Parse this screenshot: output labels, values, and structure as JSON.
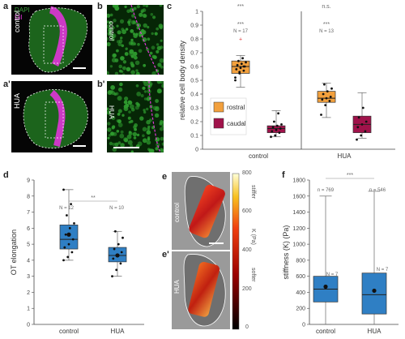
{
  "figure": {
    "panel_labels": {
      "a": "a",
      "a_prime": "a'",
      "b": "b",
      "b_prime": "b'",
      "c": "c",
      "d": "d",
      "e": "e",
      "e_prime": "e'",
      "f": "f"
    },
    "panel_a": {
      "legend_dapi": "DAPI",
      "legend_dii": "DiI",
      "condition": "control"
    },
    "panel_a_prime": {
      "condition": "HUA"
    },
    "panel_b": {
      "condition": "control"
    },
    "panel_b_prime": {
      "condition": "HUA"
    },
    "panel_e": {
      "condition": "control",
      "softer": "softer",
      "stiffer": "stiffer"
    },
    "panel_e_prime": {
      "condition": "HUA"
    },
    "colorbar": {
      "label": "K (Pa)",
      "ticks": [
        "800",
        "600",
        "400",
        "200",
        "0"
      ]
    },
    "colors": {
      "rostral": "#f2a03d",
      "caudal": "#a0124a",
      "control_blue": "#2f7fc4",
      "hua_blue": "#2f7fc4",
      "dapi_green": "#3ca03c",
      "dii_magenta": "#e034d8"
    }
  },
  "chart_data": [
    {
      "id": "c",
      "type": "box",
      "ylabel": "relative cell body density",
      "ylim": [
        0,
        1.0
      ],
      "yticks": [
        "0",
        "0.1",
        "0.2",
        "0.3",
        "0.4",
        "0.5",
        "0.6",
        "0.7",
        "0.8",
        "0.9",
        "1"
      ],
      "categories": [
        "control",
        "HUA"
      ],
      "legend": [
        "rostral",
        "caudal"
      ],
      "annotations": {
        "control_top": "***",
        "control_mid": "***",
        "control_n": "N = 17",
        "hua_top": "n.s.",
        "hua_mid": "***",
        "hua_n": "N = 13"
      },
      "series": [
        {
          "name": "rostral",
          "color": "#f2a03d",
          "boxes": [
            {
              "category": "control",
              "min": 0.45,
              "q1": 0.55,
              "median": 0.6,
              "q3": 0.64,
              "max": 0.68,
              "outliers": [
                0.8
              ],
              "points": [
                0.5,
                0.55,
                0.57,
                0.58,
                0.59,
                0.6,
                0.61,
                0.62,
                0.63,
                0.64,
                0.66,
                0.52,
                0.56,
                0.6
              ]
            },
            {
              "category": "HUA",
              "min": 0.23,
              "q1": 0.34,
              "median": 0.37,
              "q3": 0.42,
              "max": 0.48,
              "outliers": [],
              "points": [
                0.25,
                0.32,
                0.35,
                0.36,
                0.37,
                0.38,
                0.4,
                0.42,
                0.44,
                0.47
              ]
            }
          ]
        },
        {
          "name": "caudal",
          "color": "#a0124a",
          "boxes": [
            {
              "category": "control",
              "min": 0.09,
              "q1": 0.12,
              "median": 0.15,
              "q3": 0.17,
              "max": 0.28,
              "outliers": [],
              "points": [
                0.09,
                0.1,
                0.12,
                0.13,
                0.14,
                0.15,
                0.16,
                0.17,
                0.18,
                0.2,
                0.26
              ]
            },
            {
              "category": "HUA",
              "min": 0.08,
              "q1": 0.12,
              "median": 0.18,
              "q3": 0.24,
              "max": 0.41,
              "outliers": [],
              "points": [
                0.07,
                0.1,
                0.13,
                0.16,
                0.18,
                0.2,
                0.23,
                0.3
              ]
            }
          ]
        }
      ]
    },
    {
      "id": "d",
      "type": "box",
      "ylabel": "OT elongation",
      "ylim": [
        0,
        9
      ],
      "yticks": [
        "0",
        "1",
        "2",
        "3",
        "4",
        "5",
        "6",
        "7",
        "8",
        "9"
      ],
      "categories": [
        "control",
        "HUA"
      ],
      "annotations": {
        "sig": "**",
        "n_control": "N = 12",
        "n_hua": "N = 10"
      },
      "series": [
        {
          "name": "",
          "color": "#2f7fc4",
          "boxes": [
            {
              "category": "control",
              "min": 4.0,
              "q1": 4.7,
              "median": 5.3,
              "q3": 6.2,
              "max": 8.4,
              "mean": 5.6,
              "points": [
                4.0,
                4.2,
                4.5,
                4.8,
                5.0,
                5.3,
                5.6,
                6.0,
                6.3,
                6.8,
                7.5,
                8.4
              ]
            },
            {
              "category": "HUA",
              "min": 3.0,
              "q1": 3.9,
              "median": 4.3,
              "q3": 4.8,
              "max": 5.8,
              "mean": 4.3,
              "points": [
                3.0,
                3.4,
                3.8,
                4.1,
                4.3,
                4.5,
                4.7,
                5.0,
                5.4,
                5.8
              ]
            }
          ]
        }
      ]
    },
    {
      "id": "f",
      "type": "box",
      "ylabel": "stiffness (K) (Pa)",
      "ylim": [
        0,
        1800
      ],
      "yticks": [
        "0",
        "200",
        "400",
        "600",
        "800",
        "1000",
        "1200",
        "1400",
        "1600",
        "1800"
      ],
      "categories": [
        "control",
        "HUA"
      ],
      "annotations": {
        "sig": "***",
        "n_control_top": "n = 769",
        "n_hua_top": "n = 546",
        "n_control": "N = 7",
        "n_hua": "N = 7"
      },
      "series": [
        {
          "name": "",
          "color": "#2f7fc4",
          "boxes": [
            {
              "category": "control",
              "min": 0,
              "q1": 280,
              "median": 440,
              "q3": 600,
              "max": 1600,
              "mean": 470
            },
            {
              "category": "HUA",
              "min": 0,
              "q1": 130,
              "median": 370,
              "q3": 640,
              "max": 1660,
              "mean": 420
            }
          ]
        }
      ]
    }
  ]
}
